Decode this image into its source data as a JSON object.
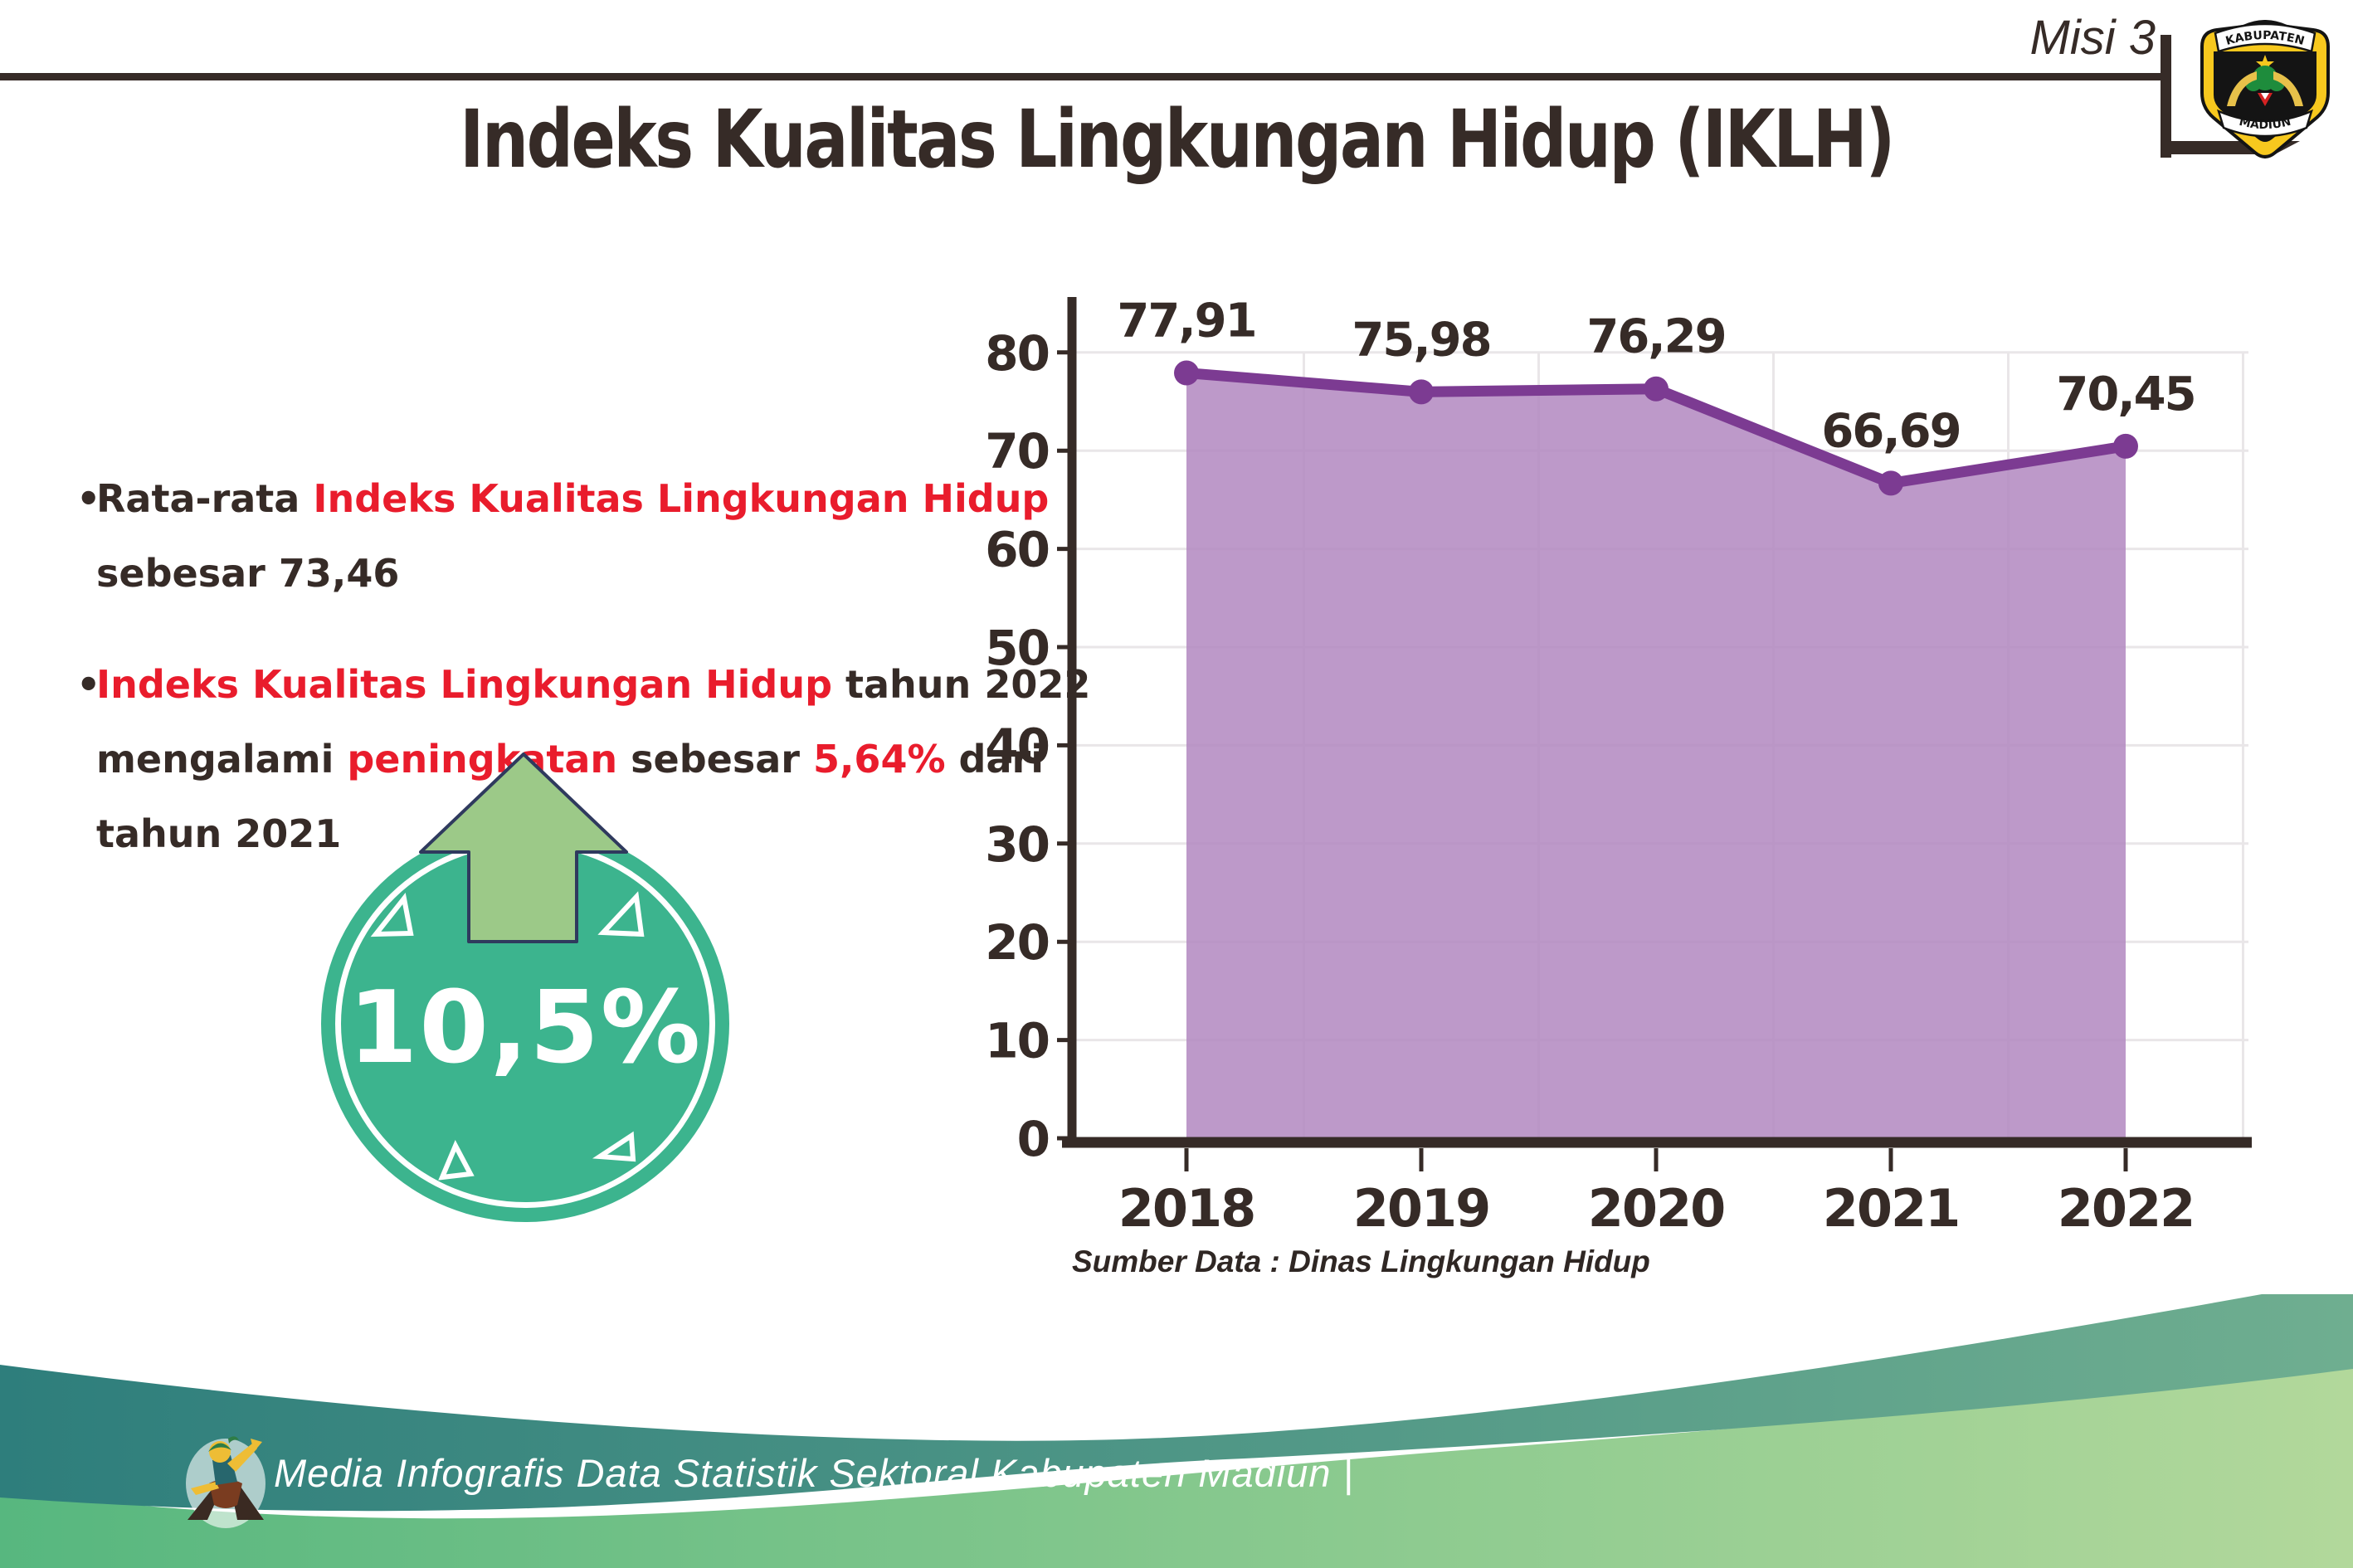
{
  "header": {
    "misi_label": "Misi 3",
    "logo": {
      "name": "kabupaten-madiun-emblem",
      "top_text": "KABUPATEN",
      "bottom_text": "MADIUN"
    }
  },
  "title": "Indeks Kualitas Lingkungan Hidup (IKLH)",
  "bullets": [
    {
      "lines": [
        [
          {
            "text": "Rata-rata ",
            "red": false
          },
          {
            "text": "Indeks Kualitas Lingkungan Hidup",
            "red": true
          }
        ],
        [
          {
            "text": "sebesar 73,46",
            "red": false
          }
        ]
      ]
    },
    {
      "lines": [
        [
          {
            "text": "Indeks Kualitas Lingkungan Hidup",
            "red": true
          },
          {
            "text": " tahun 2022",
            "red": false
          }
        ],
        [
          {
            "text": "mengalami ",
            "red": false
          },
          {
            "text": "peningkatan",
            "red": true
          },
          {
            "text": " sebesar ",
            "red": false
          },
          {
            "text": "5,64%",
            "red": true
          },
          {
            "text": " dari",
            "red": false
          }
        ],
        [
          {
            "text": "tahun 2021",
            "red": false
          }
        ]
      ]
    }
  ],
  "badge": {
    "value": "10,5%",
    "meaning": "arrow-up-increase"
  },
  "chart_data": {
    "type": "area",
    "categories": [
      "2018",
      "2019",
      "2020",
      "2021",
      "2022"
    ],
    "values": [
      77.91,
      75.98,
      76.29,
      66.69,
      70.45
    ],
    "value_labels": [
      "77,91",
      "75,98",
      "76,29",
      "66,69",
      "70,45"
    ],
    "title": "",
    "xlabel": "",
    "ylabel": "",
    "ylim": [
      0,
      80
    ],
    "ytick_step": 10,
    "grid": true,
    "legend": "none",
    "source": "Sumber Data : Dinas Lingkungan Hidup",
    "colors": {
      "line": "#7c3b92",
      "area": "#b287c0",
      "dot": "#7c3b92"
    }
  },
  "footer": {
    "text": "Media Infografis Data Statistik Sektoral Kabupaten Madiun |"
  },
  "colors": {
    "text_dark": "#362b27",
    "accent_red": "#e91c2c",
    "badge_teal": "#3cb48e",
    "arrow_green": "#9cc988",
    "arrow_outline": "#2f3a5e",
    "footer_teal_dark": "#2e7e7c",
    "footer_teal_light": "#6fae90",
    "footer_green_dark": "#57b77f",
    "footer_green_light": "#b2d89b",
    "logo_gold": "#f7c81e",
    "gridline": "#e9e6e8"
  }
}
